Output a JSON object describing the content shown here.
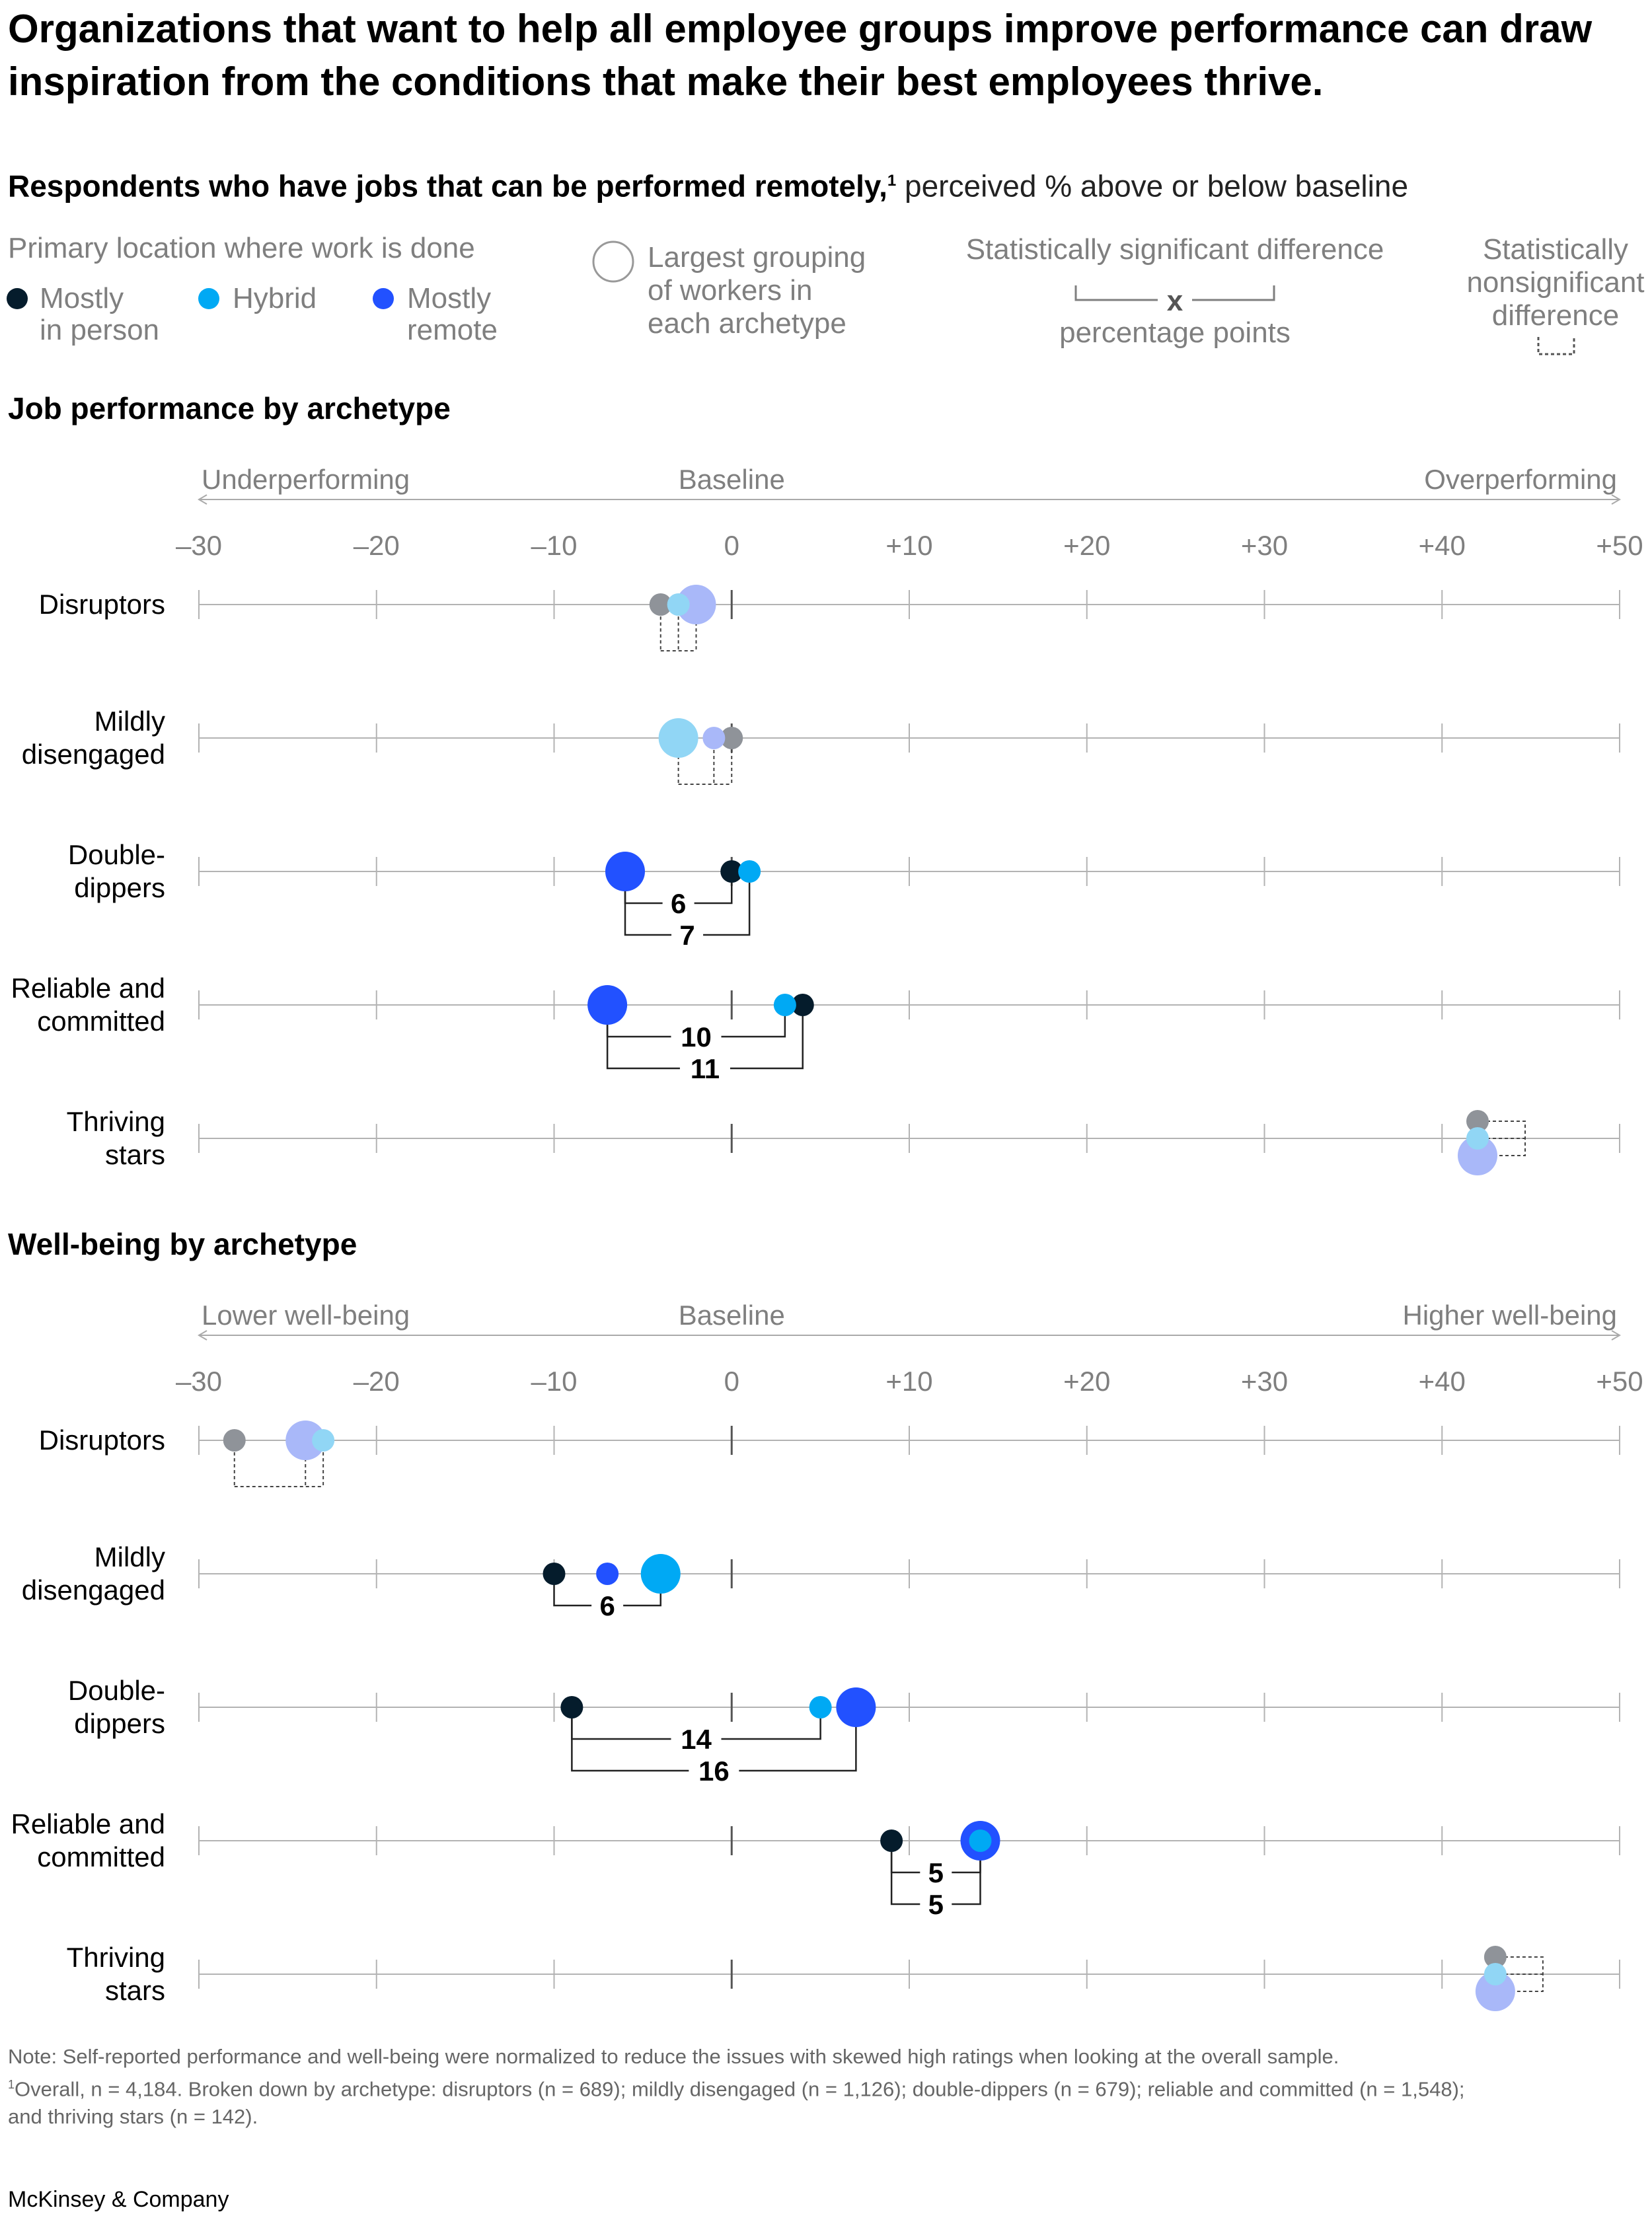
{
  "headline": "Organizations that want to help all employee groups improve performance can draw inspiration from the conditions that make their best employees thrive.",
  "subtitle": {
    "bold": "Respondents who have jobs that can be performed remotely,",
    "sup": "1",
    "rest": " perceived % above or below baseline"
  },
  "legend": {
    "location_title": "Primary location where work is done",
    "series": [
      {
        "key": "in_person",
        "line1": "Mostly",
        "line2": "in person",
        "color": "#051c2c"
      },
      {
        "key": "hybrid",
        "line1": "Hybrid",
        "line2": "",
        "color": "#00a9f4"
      },
      {
        "key": "remote",
        "line1": "Mostly",
        "line2": "remote",
        "color": "#2251ff"
      }
    ],
    "largest_lines": [
      "Largest grouping",
      "of workers in",
      "each archetype"
    ],
    "sig_title": "Statistically significant difference",
    "sig_marker": "x",
    "sig_caption": "percentage points",
    "nonsig_lines": [
      "Statistically",
      "nonsignificant",
      "difference"
    ]
  },
  "colors": {
    "in_person": "#051c2c",
    "hybrid": "#00a9f4",
    "remote": "#2251ff",
    "in_person_faded": "#8f9399",
    "hybrid_faded": "#91d6f5",
    "remote_faded": "#a9b8f9",
    "gridline": "#b3b3b3",
    "axis_text": "#7f7f7f"
  },
  "chart_data": [
    {
      "type": "dot-plot",
      "title": "Job performance by archetype",
      "direction_labels": {
        "left": "Underperforming",
        "center": "Baseline",
        "right": "Overperforming"
      },
      "xlim": [
        -30,
        50
      ],
      "ticks": [
        -30,
        -20,
        -10,
        0,
        10,
        20,
        30,
        40,
        50
      ],
      "tick_labels": [
        "–30",
        "–20",
        "–10",
        "0",
        "+10",
        "+20",
        "+30",
        "+40",
        "+50"
      ],
      "rows": [
        {
          "label": [
            "Disruptors"
          ],
          "significant": false,
          "points": [
            {
              "series": "in_person",
              "value": -4,
              "largest": false
            },
            {
              "series": "hybrid",
              "value": -3,
              "largest": false
            },
            {
              "series": "remote",
              "value": -2,
              "largest": true
            }
          ]
        },
        {
          "label": [
            "Mildly",
            "disengaged"
          ],
          "significant": false,
          "points": [
            {
              "series": "in_person",
              "value": 0,
              "largest": false
            },
            {
              "series": "hybrid",
              "value": -3,
              "largest": true
            },
            {
              "series": "remote",
              "value": -1,
              "largest": false
            }
          ]
        },
        {
          "label": [
            "Double-",
            "dippers"
          ],
          "significant": true,
          "points": [
            {
              "series": "in_person",
              "value": 0,
              "largest": false
            },
            {
              "series": "hybrid",
              "value": 1,
              "largest": false
            },
            {
              "series": "remote",
              "value": -6,
              "largest": true
            }
          ],
          "brackets": [
            {
              "from": -6,
              "to": 0,
              "label": "6"
            },
            {
              "from": -6,
              "to": 1,
              "label": "7"
            }
          ]
        },
        {
          "label": [
            "Reliable and",
            "committed"
          ],
          "significant": true,
          "points": [
            {
              "series": "in_person",
              "value": 4,
              "largest": false
            },
            {
              "series": "hybrid",
              "value": 3,
              "largest": false
            },
            {
              "series": "remote",
              "value": -7,
              "largest": true
            }
          ],
          "brackets": [
            {
              "from": -7,
              "to": 3,
              "label": "10"
            },
            {
              "from": -7,
              "to": 4,
              "label": "11"
            }
          ]
        },
        {
          "label": [
            "Thriving",
            "stars"
          ],
          "significant": false,
          "points": [
            {
              "series": "in_person",
              "value": 42,
              "largest": false
            },
            {
              "series": "hybrid",
              "value": 42,
              "largest": false
            },
            {
              "series": "remote",
              "value": 42,
              "largest": true
            }
          ]
        }
      ]
    },
    {
      "type": "dot-plot",
      "title": "Well-being by archetype",
      "direction_labels": {
        "left": "Lower well-being",
        "center": "Baseline",
        "right": "Higher well-being"
      },
      "xlim": [
        -30,
        50
      ],
      "ticks": [
        -30,
        -20,
        -10,
        0,
        10,
        20,
        30,
        40,
        50
      ],
      "tick_labels": [
        "–30",
        "–20",
        "–10",
        "0",
        "+10",
        "+20",
        "+30",
        "+40",
        "+50"
      ],
      "rows": [
        {
          "label": [
            "Disruptors"
          ],
          "significant": false,
          "points": [
            {
              "series": "in_person",
              "value": -28,
              "largest": false
            },
            {
              "series": "hybrid",
              "value": -23,
              "largest": false
            },
            {
              "series": "remote",
              "value": -24,
              "largest": true
            }
          ]
        },
        {
          "label": [
            "Mildly",
            "disengaged"
          ],
          "significant": true,
          "points": [
            {
              "series": "in_person",
              "value": -10,
              "largest": false
            },
            {
              "series": "hybrid",
              "value": -4,
              "largest": true
            },
            {
              "series": "remote",
              "value": -7,
              "largest": false
            }
          ],
          "brackets": [
            {
              "from": -10,
              "to": -4,
              "label": "6"
            }
          ]
        },
        {
          "label": [
            "Double-",
            "dippers"
          ],
          "significant": true,
          "points": [
            {
              "series": "in_person",
              "value": -9,
              "largest": false
            },
            {
              "series": "hybrid",
              "value": 5,
              "largest": false
            },
            {
              "series": "remote",
              "value": 7,
              "largest": true
            }
          ],
          "brackets": [
            {
              "from": -9,
              "to": 5,
              "label": "14"
            },
            {
              "from": -9,
              "to": 7,
              "label": "16"
            }
          ]
        },
        {
          "label": [
            "Reliable and",
            "committed"
          ],
          "significant": true,
          "points": [
            {
              "series": "in_person",
              "value": 9,
              "largest": false
            },
            {
              "series": "hybrid",
              "value": 14,
              "largest": false
            },
            {
              "series": "remote",
              "value": 14,
              "largest": true
            }
          ],
          "brackets": [
            {
              "from": 9,
              "to": 14,
              "label": "5"
            },
            {
              "from": 9,
              "to": 14,
              "label": "5"
            }
          ]
        },
        {
          "label": [
            "Thriving",
            "stars"
          ],
          "significant": false,
          "points": [
            {
              "series": "in_person",
              "value": 43,
              "largest": false
            },
            {
              "series": "hybrid",
              "value": 43,
              "largest": false
            },
            {
              "series": "remote",
              "value": 43,
              "largest": true
            }
          ]
        }
      ]
    }
  ],
  "footnotes": {
    "note": "Note: Self-reported performance and well-being were normalized to reduce the issues with skewed high ratings when looking at the overall sample.",
    "fn1_mark": "1",
    "fn1_line1": "Overall, n = 4,184. Broken down by archetype: disruptors (n = 689); mildly disengaged (n = 1,126); double-dippers (n = 679); reliable and committed (n = 1,548);",
    "fn1_line2": "and thriving stars (n = 142)."
  },
  "brand": "McKinsey & Company"
}
